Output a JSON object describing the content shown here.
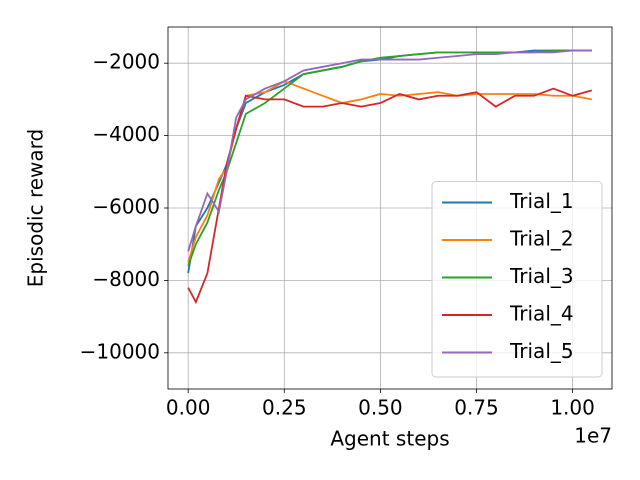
{
  "chart_data": {
    "type": "line",
    "xlabel": "Agent steps",
    "ylabel": "Episodic reward",
    "x_offset_label": "1e7",
    "x": [
      0,
      200000,
      500000,
      800000,
      1000000,
      1250000,
      1500000,
      2000000,
      2500000,
      3000000,
      3500000,
      4000000,
      4500000,
      5000000,
      5500000,
      6000000,
      6500000,
      7000000,
      7500000,
      8000000,
      8500000,
      9000000,
      9500000,
      10000000,
      10500000
    ],
    "series": [
      {
        "name": "Trial_1",
        "color": "#1f77b4",
        "values": [
          -7800,
          -6500,
          -6000,
          -5300,
          -4800,
          -3800,
          -3100,
          -2800,
          -2600,
          -2300,
          -2200,
          -2100,
          -1950,
          -1900,
          -1800,
          -1750,
          -1700,
          -1700,
          -1700,
          -1700,
          -1700,
          -1650,
          -1650,
          -1650,
          -1650
        ]
      },
      {
        "name": "Trial_2",
        "color": "#ff7f0e",
        "values": [
          -7500,
          -6800,
          -6200,
          -5200,
          -4900,
          -3800,
          -2900,
          -2800,
          -2500,
          -2700,
          -2900,
          -3100,
          -3000,
          -2850,
          -2900,
          -2850,
          -2800,
          -2900,
          -2850,
          -2850,
          -2850,
          -2850,
          -2900,
          -2900,
          -3000
        ]
      },
      {
        "name": "Trial_3",
        "color": "#2ca02c",
        "values": [
          -7600,
          -7000,
          -6400,
          -5500,
          -5000,
          -4200,
          -3400,
          -3100,
          -2700,
          -2300,
          -2200,
          -2100,
          -1950,
          -1850,
          -1800,
          -1750,
          -1700,
          -1700,
          -1700,
          -1700,
          -1700,
          -1700,
          -1650,
          -1650,
          -1650
        ]
      },
      {
        "name": "Trial_4",
        "color": "#d62728",
        "values": [
          -8200,
          -8600,
          -7800,
          -6000,
          -4800,
          -3800,
          -2900,
          -3000,
          -3000,
          -3200,
          -3200,
          -3100,
          -3200,
          -3100,
          -2850,
          -3000,
          -2900,
          -2900,
          -2800,
          -3200,
          -2900,
          -2900,
          -2700,
          -2900,
          -2750
        ]
      },
      {
        "name": "Trial_5",
        "color": "#9467bd",
        "values": [
          -7200,
          -6500,
          -5600,
          -6100,
          -5000,
          -3500,
          -3000,
          -2700,
          -2500,
          -2200,
          -2100,
          -2000,
          -1900,
          -1900,
          -1900,
          -1900,
          -1850,
          -1800,
          -1750,
          -1750,
          -1700,
          -1700,
          -1700,
          -1650,
          -1650
        ]
      }
    ],
    "xlim": [
      -525000,
      11025000
    ],
    "xticks": [
      {
        "value": 0,
        "label": "0.00"
      },
      {
        "value": 2500000,
        "label": "0.25"
      },
      {
        "value": 5000000,
        "label": "0.50"
      },
      {
        "value": 7500000,
        "label": "0.75"
      },
      {
        "value": 10000000,
        "label": "1.00"
      }
    ],
    "ylim": [
      -11000,
      -1000
    ],
    "yticks": [
      {
        "value": -10000,
        "label": "−10000"
      },
      {
        "value": -8000,
        "label": "−8000"
      },
      {
        "value": -6000,
        "label": "−6000"
      },
      {
        "value": -4000,
        "label": "−4000"
      },
      {
        "value": -2000,
        "label": "−2000"
      }
    ],
    "grid": true,
    "legend_position": "lower right"
  }
}
